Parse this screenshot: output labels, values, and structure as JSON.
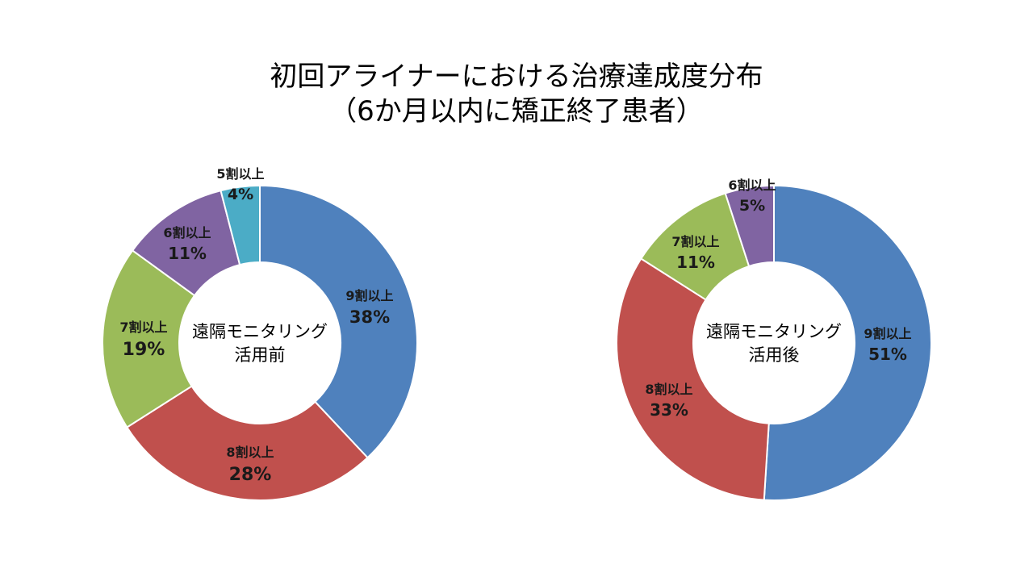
{
  "title": {
    "line1": "初回アライナーにおける治療達成度分布",
    "line2": "（6か月以内に矯正終了患者）"
  },
  "chart_data": [
    {
      "type": "pie",
      "variant": "donut",
      "center_label": [
        "遠隔モニタリング",
        "活用前"
      ],
      "slices": [
        {
          "label": "9割以上",
          "value": 38,
          "value_text": "38%",
          "color": "#4F81BD"
        },
        {
          "label": "8割以上",
          "value": 28,
          "value_text": "28%",
          "color": "#C0504D"
        },
        {
          "label": "7割以上",
          "value": 19,
          "value_text": "19%",
          "color": "#9BBB59"
        },
        {
          "label": "6割以上",
          "value": 11,
          "value_text": "11%",
          "color": "#8064A2"
        },
        {
          "label": "5割以上",
          "value": 4,
          "value_text": "4%",
          "color": "#4BACC6"
        }
      ]
    },
    {
      "type": "pie",
      "variant": "donut",
      "center_label": [
        "遠隔モニタリング",
        "活用後"
      ],
      "slices": [
        {
          "label": "9割以上",
          "value": 51,
          "value_text": "51%",
          "color": "#4F81BD"
        },
        {
          "label": "8割以上",
          "value": 33,
          "value_text": "33%",
          "color": "#C0504D"
        },
        {
          "label": "7割以上",
          "value": 11,
          "value_text": "11%",
          "color": "#9BBB59"
        },
        {
          "label": "6割以上",
          "value": 5,
          "value_text": "5%",
          "color": "#8064A2"
        }
      ]
    }
  ]
}
